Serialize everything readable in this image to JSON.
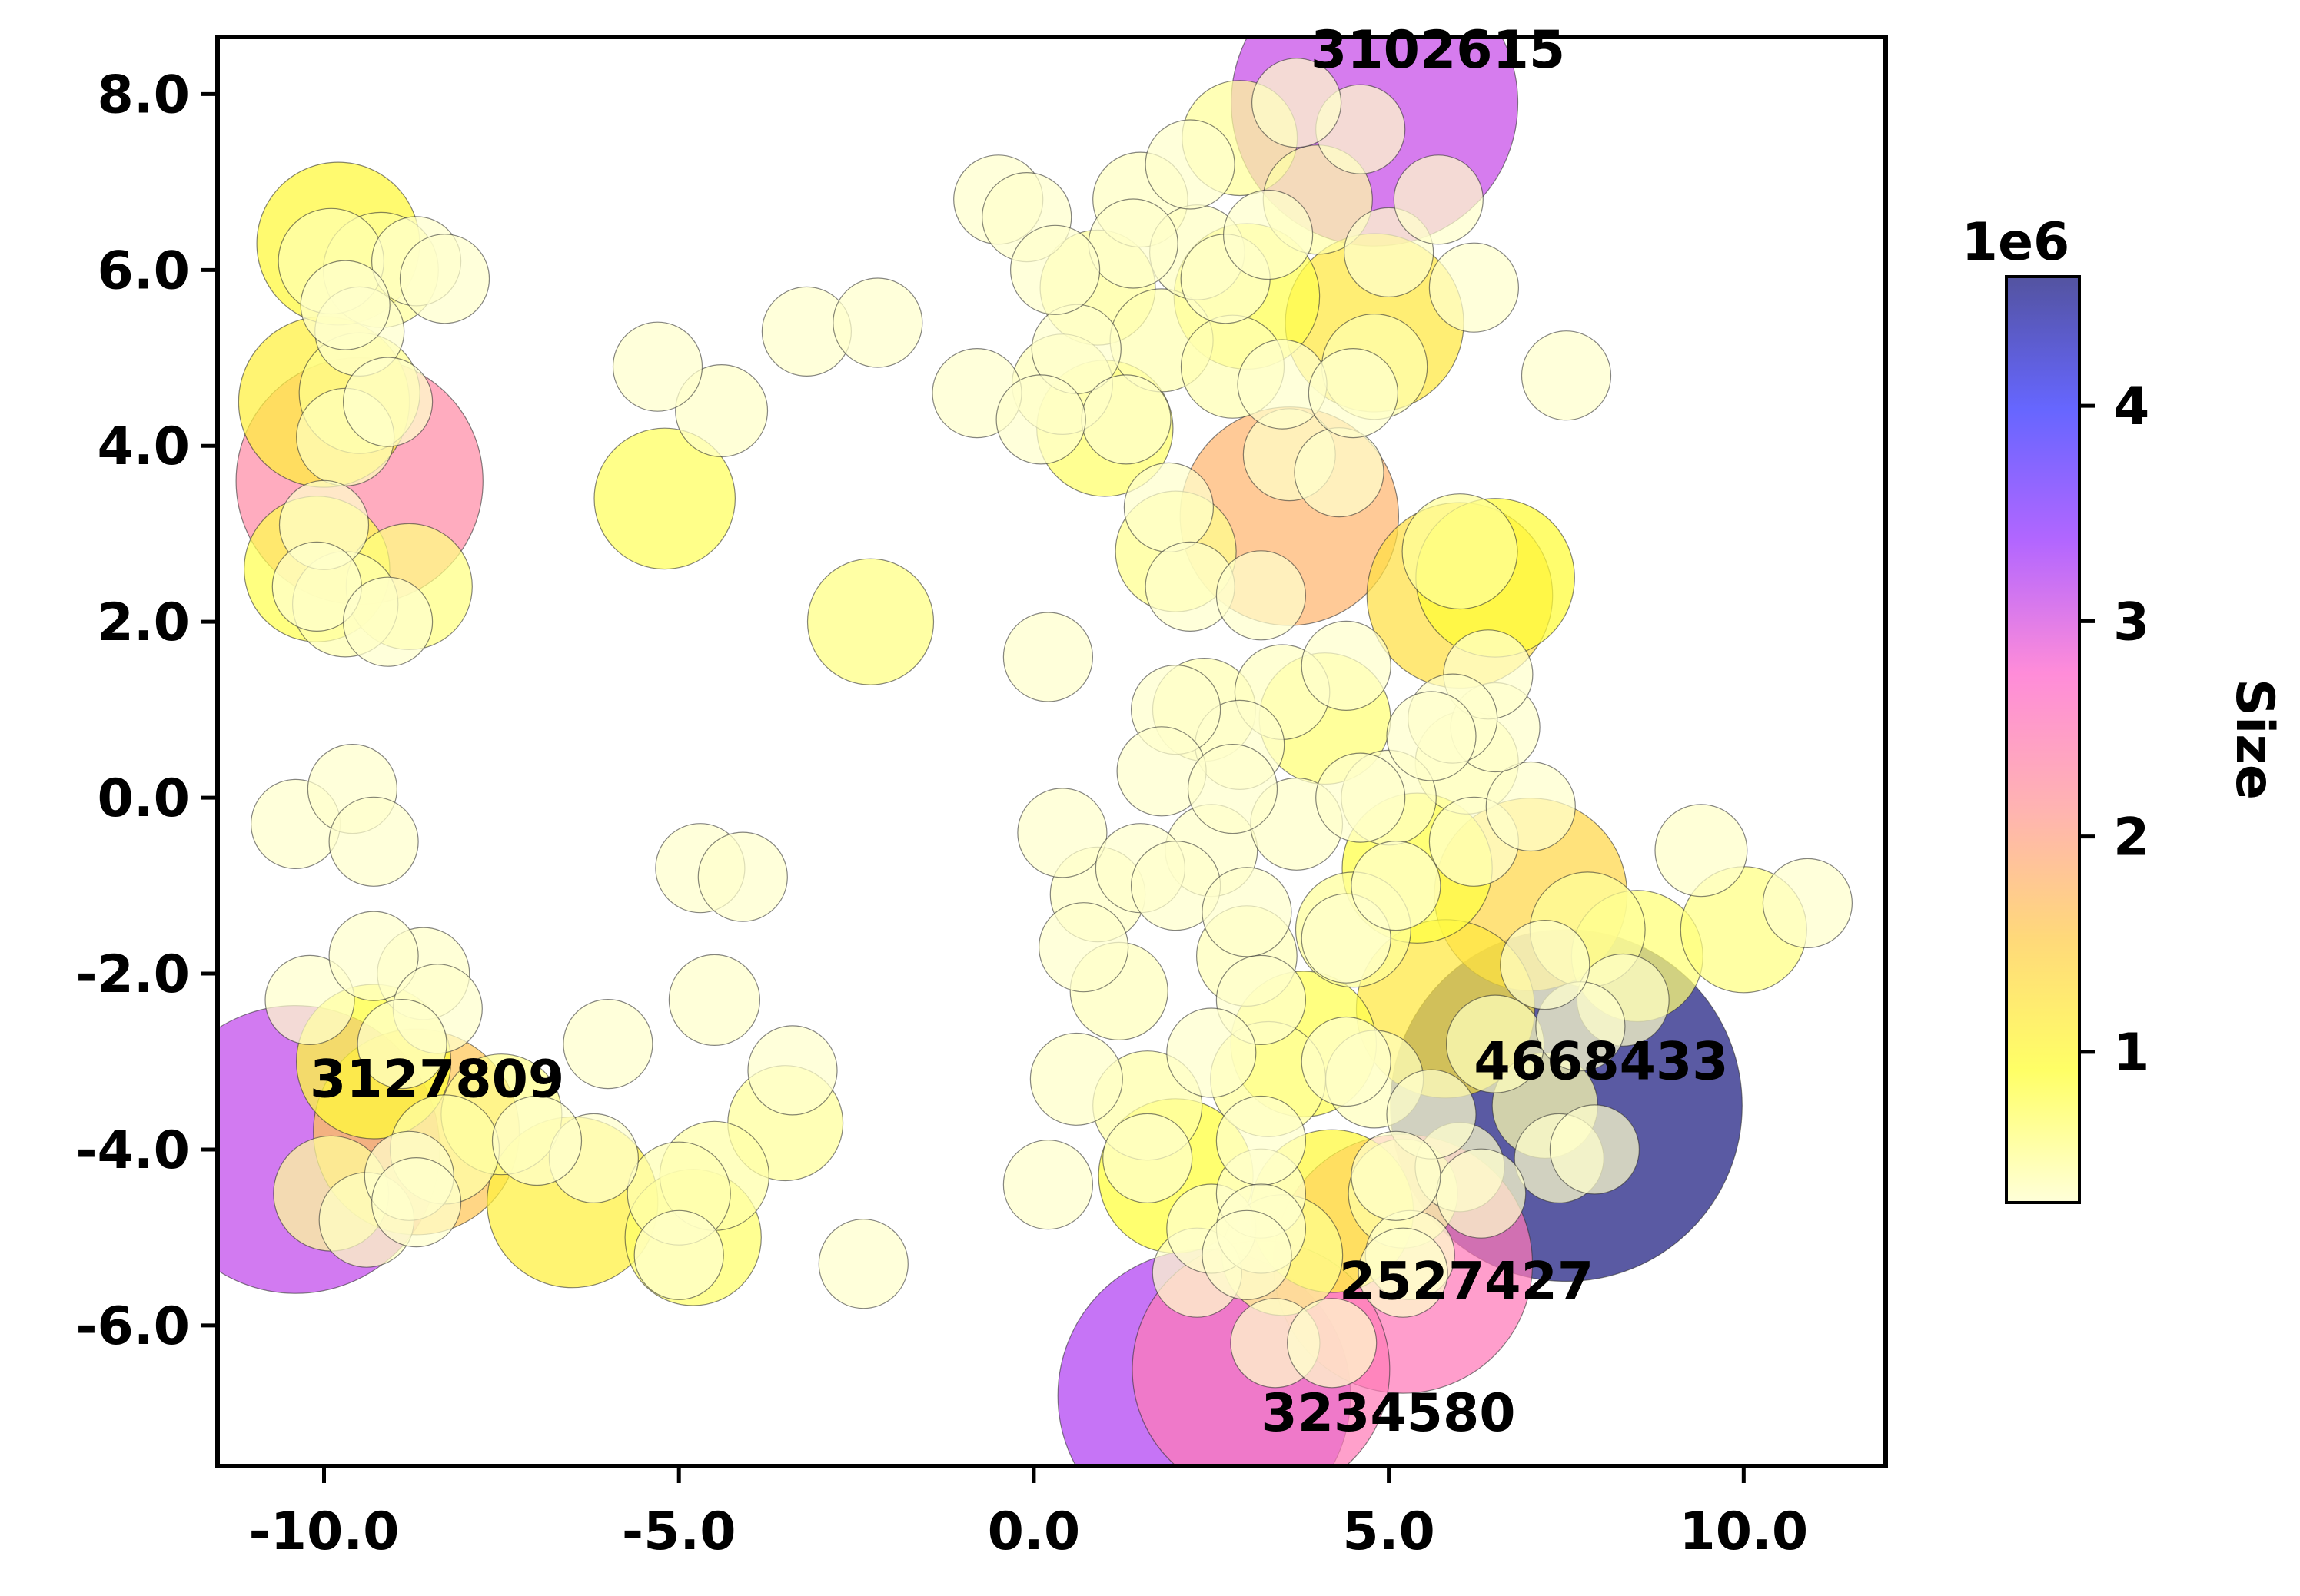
{
  "chart_data": {
    "type": "scatter",
    "title": "",
    "xlabel": "",
    "ylabel": "",
    "xlim": [
      -11.5,
      12.0
    ],
    "ylim": [
      -7.6,
      8.65
    ],
    "xticks": [
      -10.0,
      -5.0,
      0.0,
      5.0,
      10.0
    ],
    "xtick_labels": [
      "-10.0",
      "-5.0",
      "0.0",
      "5.0",
      "10.0"
    ],
    "yticks": [
      -6.0,
      -4.0,
      -2.0,
      0.0,
      2.0,
      4.0,
      6.0,
      8.0
    ],
    "ytick_labels": [
      "-6.0",
      "-4.0",
      "-2.0",
      "0.0",
      "2.0",
      "4.0",
      "6.0",
      "8.0"
    ],
    "grid": false,
    "colormap": "gnuplot2_r",
    "colormap_stops": [
      "#ffffcc",
      "#ffff33",
      "#ffcc4d",
      "#ff9999",
      "#ff66cc",
      "#9933ff",
      "#3333ff",
      "#1a1a80"
    ],
    "size_range": [
      300000,
      4600000
    ],
    "colorbar": {
      "label": "Size",
      "multiplier": "1e6",
      "ticks": [
        1,
        2,
        3,
        4
      ],
      "tick_labels": [
        "1",
        "2",
        "3",
        "4"
      ]
    },
    "annotations": [
      {
        "text": "3102615",
        "x": 3.9,
        "y": 8.3
      },
      {
        "text": "3127809",
        "x": -10.2,
        "y": -3.4
      },
      {
        "text": "4668433",
        "x": 6.2,
        "y": -3.2
      },
      {
        "text": "2527427",
        "x": 4.3,
        "y": -5.7
      },
      {
        "text": "3234580",
        "x": 3.2,
        "y": -7.2
      }
    ],
    "points": [
      {
        "x": 4.8,
        "y": 7.9,
        "size": 3100000
      },
      {
        "x": -10.4,
        "y": -4.0,
        "size": 3130000
      },
      {
        "x": 7.5,
        "y": -3.5,
        "size": 4670000
      },
      {
        "x": 5.2,
        "y": -5.3,
        "size": 2530000
      },
      {
        "x": 2.4,
        "y": -6.8,
        "size": 3230000
      },
      {
        "x": 3.2,
        "y": -6.5,
        "size": 2500000
      },
      {
        "x": -9.5,
        "y": 3.6,
        "size": 2300000
      },
      {
        "x": 3.6,
        "y": 3.2,
        "size": 1800000
      },
      {
        "x": 7.0,
        "y": -1.1,
        "size": 1400000
      },
      {
        "x": 6.0,
        "y": 2.3,
        "size": 1300000
      },
      {
        "x": -8.7,
        "y": -3.8,
        "size": 1600000
      },
      {
        "x": -6.5,
        "y": -4.6,
        "size": 1100000
      },
      {
        "x": 4.8,
        "y": 5.4,
        "size": 1200000
      },
      {
        "x": -9.8,
        "y": 6.3,
        "size": 1000000
      },
      {
        "x": -10.0,
        "y": 4.5,
        "size": 1100000
      },
      {
        "x": 5.8,
        "y": -2.4,
        "size": 1200000
      },
      {
        "x": 4.2,
        "y": -4.7,
        "size": 1000000
      },
      {
        "x": 6.5,
        "y": 2.5,
        "size": 950000
      },
      {
        "x": -10.1,
        "y": 2.6,
        "size": 800000
      },
      {
        "x": -9.3,
        "y": -3.0,
        "size": 900000
      },
      {
        "x": 2.0,
        "y": -4.3,
        "size": 900000
      },
      {
        "x": 3.8,
        "y": -2.8,
        "size": 800000
      },
      {
        "x": -5.2,
        "y": 3.4,
        "size": 750000
      },
      {
        "x": -2.3,
        "y": 2.0,
        "size": 600000
      },
      {
        "x": 5.4,
        "y": -0.8,
        "size": 850000
      },
      {
        "x": 3.0,
        "y": 5.7,
        "size": 800000
      },
      {
        "x": 1.0,
        "y": 4.2,
        "size": 700000
      },
      {
        "x": -4.8,
        "y": -5.0,
        "size": 700000
      },
      {
        "x": 8.5,
        "y": -1.8,
        "size": 650000
      },
      {
        "x": 10.0,
        "y": -1.5,
        "size": 600000
      },
      {
        "x": 4.1,
        "y": 0.9,
        "size": 650000
      },
      {
        "x": 2.0,
        "y": 2.8,
        "size": 550000
      },
      {
        "x": -8.8,
        "y": 2.4,
        "size": 600000
      },
      {
        "x": -9.5,
        "y": 4.6,
        "size": 550000
      },
      {
        "x": -9.2,
        "y": 6.0,
        "size": 500000
      },
      {
        "x": -7.5,
        "y": -3.6,
        "size": 550000
      },
      {
        "x": -3.5,
        "y": -3.7,
        "size": 500000
      },
      {
        "x": 6.0,
        "y": 2.8,
        "size": 500000
      },
      {
        "x": 7.8,
        "y": -1.5,
        "size": 500000
      },
      {
        "x": 3.3,
        "y": -3.2,
        "size": 500000
      },
      {
        "x": 4.5,
        "y": -1.5,
        "size": 500000
      },
      {
        "x": 3.5,
        "y": -5.2,
        "size": 550000
      },
      {
        "x": 2.9,
        "y": 7.5,
        "size": 500000
      },
      {
        "x": 0.9,
        "y": 5.8,
        "size": 500000
      },
      {
        "x": -9.9,
        "y": -4.5,
        "size": 500000
      },
      {
        "x": -8.3,
        "y": -4.0,
        "size": 450000
      },
      {
        "x": -4.5,
        "y": -4.3,
        "size": 450000
      },
      {
        "x": 1.6,
        "y": -3.5,
        "size": 450000
      },
      {
        "x": 5.2,
        "y": -4.5,
        "size": 450000
      },
      {
        "x": 2.4,
        "y": 1.0,
        "size": 400000
      },
      {
        "x": 6.1,
        "y": 0.4,
        "size": 400000
      },
      {
        "x": 4.0,
        "y": 6.8,
        "size": 450000
      },
      {
        "x": 1.8,
        "y": 5.2,
        "size": 400000
      },
      {
        "x": -9.7,
        "y": 2.2,
        "size": 420000
      },
      {
        "x": -9.9,
        "y": 6.1,
        "size": 420000
      },
      {
        "x": -5.0,
        "y": -4.5,
        "size": 400000
      },
      {
        "x": 4.8,
        "y": 4.9,
        "size": 420000
      },
      {
        "x": 2.8,
        "y": 4.9,
        "size": 400000
      },
      {
        "x": 0.4,
        "y": 4.7,
        "size": 380000
      },
      {
        "x": 7.2,
        "y": -3.5,
        "size": 420000
      },
      {
        "x": 3.0,
        "y": -1.8,
        "size": 380000
      },
      {
        "x": 1.2,
        "y": -2.2,
        "size": 360000
      },
      {
        "x": 4.8,
        "y": -3.2,
        "size": 360000
      },
      {
        "x": 6.5,
        "y": -2.8,
        "size": 360000
      },
      {
        "x": -9.7,
        "y": 4.1,
        "size": 360000
      },
      {
        "x": -9.4,
        "y": -4.8,
        "size": 340000
      },
      {
        "x": 0.9,
        "y": -1.1,
        "size": 340000
      },
      {
        "x": 5.0,
        "y": 0.0,
        "size": 340000
      },
      {
        "x": 3.5,
        "y": 1.2,
        "size": 340000
      },
      {
        "x": 1.5,
        "y": 6.8,
        "size": 340000
      },
      {
        "x": 2.3,
        "y": 6.2,
        "size": 340000
      },
      {
        "x": 3.6,
        "y": 3.9,
        "size": 320000
      },
      {
        "x": 2.5,
        "y": -0.6,
        "size": 320000
      },
      {
        "x": 3.7,
        "y": -0.3,
        "size": 320000
      },
      {
        "x": 8.3,
        "y": -2.3,
        "size": 320000
      },
      {
        "x": 9.4,
        "y": -0.6,
        "size": 320000
      },
      {
        "x": 10.9,
        "y": -1.2,
        "size": 300000
      },
      {
        "x": -8.6,
        "y": -2.0,
        "size": 320000
      },
      {
        "x": -4.5,
        "y": -2.3,
        "size": 310000
      },
      {
        "x": -6.0,
        "y": -2.8,
        "size": 300000
      },
      {
        "x": -3.4,
        "y": -3.1,
        "size": 300000
      },
      {
        "x": -4.7,
        "y": -0.8,
        "size": 300000
      },
      {
        "x": -4.1,
        "y": -0.9,
        "size": 300000
      },
      {
        "x": -10.4,
        "y": -0.3,
        "size": 300000
      },
      {
        "x": -9.6,
        "y": 0.1,
        "size": 300000
      },
      {
        "x": -9.3,
        "y": -0.5,
        "size": 300000
      },
      {
        "x": -5.3,
        "y": 4.9,
        "size": 300000
      },
      {
        "x": -4.4,
        "y": 4.4,
        "size": 320000
      },
      {
        "x": -3.2,
        "y": 5.3,
        "size": 300000
      },
      {
        "x": -2.2,
        "y": 5.4,
        "size": 300000
      },
      {
        "x": -0.8,
        "y": 4.6,
        "size": 300000
      },
      {
        "x": 0.2,
        "y": 1.6,
        "size": 300000
      },
      {
        "x": -2.4,
        "y": -5.3,
        "size": 300000
      },
      {
        "x": 0.2,
        "y": -4.4,
        "size": 300000
      },
      {
        "x": 0.6,
        "y": -3.2,
        "size": 320000
      },
      {
        "x": 0.4,
        "y": -0.4,
        "size": 300000
      },
      {
        "x": 0.7,
        "y": -1.7,
        "size": 300000
      },
      {
        "x": 6.2,
        "y": 5.8,
        "size": 300000
      },
      {
        "x": 7.5,
        "y": 4.8,
        "size": 300000
      },
      {
        "x": -0.5,
        "y": 6.8,
        "size": 300000
      },
      {
        "x": -0.1,
        "y": 6.6,
        "size": 300000
      },
      {
        "x": 0.6,
        "y": 5.1,
        "size": 300000
      },
      {
        "x": 1.3,
        "y": 4.3,
        "size": 300000
      },
      {
        "x": 1.9,
        "y": 3.3,
        "size": 300000
      },
      {
        "x": 2.2,
        "y": 2.4,
        "size": 300000
      },
      {
        "x": 3.2,
        "y": 2.3,
        "size": 300000
      },
      {
        "x": 3.5,
        "y": 4.7,
        "size": 300000
      },
      {
        "x": 4.3,
        "y": 3.7,
        "size": 300000
      },
      {
        "x": 4.5,
        "y": 4.6,
        "size": 300000
      },
      {
        "x": 5.0,
        "y": 6.2,
        "size": 300000
      },
      {
        "x": 5.7,
        "y": 6.8,
        "size": 300000
      },
      {
        "x": 4.6,
        "y": 7.6,
        "size": 300000
      },
      {
        "x": 3.7,
        "y": 7.9,
        "size": 300000
      },
      {
        "x": 2.2,
        "y": 7.2,
        "size": 300000
      },
      {
        "x": 1.4,
        "y": 6.3,
        "size": 300000
      },
      {
        "x": 0.3,
        "y": 6.0,
        "size": 300000
      },
      {
        "x": 0.1,
        "y": 4.3,
        "size": 300000
      },
      {
        "x": 2.7,
        "y": 5.9,
        "size": 300000
      },
      {
        "x": 3.3,
        "y": 6.4,
        "size": 300000
      },
      {
        "x": -10.0,
        "y": 3.1,
        "size": 300000
      },
      {
        "x": -10.1,
        "y": 2.4,
        "size": 300000
      },
      {
        "x": -9.1,
        "y": 2.0,
        "size": 300000
      },
      {
        "x": -9.5,
        "y": 5.3,
        "size": 300000
      },
      {
        "x": -8.7,
        "y": 6.1,
        "size": 300000
      },
      {
        "x": -8.3,
        "y": 5.9,
        "size": 300000
      },
      {
        "x": -9.7,
        "y": 5.6,
        "size": 300000
      },
      {
        "x": -9.1,
        "y": 4.5,
        "size": 300000
      },
      {
        "x": -10.2,
        "y": -2.3,
        "size": 300000
      },
      {
        "x": -9.3,
        "y": -1.8,
        "size": 300000
      },
      {
        "x": -8.4,
        "y": -2.4,
        "size": 300000
      },
      {
        "x": -8.9,
        "y": -2.8,
        "size": 300000
      },
      {
        "x": -8.8,
        "y": -4.3,
        "size": 300000
      },
      {
        "x": -8.7,
        "y": -4.6,
        "size": 300000
      },
      {
        "x": -6.2,
        "y": -4.1,
        "size": 300000
      },
      {
        "x": -7.0,
        "y": -3.9,
        "size": 300000
      },
      {
        "x": -5.0,
        "y": -5.2,
        "size": 300000
      },
      {
        "x": 2.3,
        "y": -5.4,
        "size": 300000
      },
      {
        "x": 2.5,
        "y": -4.9,
        "size": 300000
      },
      {
        "x": 3.2,
        "y": -4.5,
        "size": 300000
      },
      {
        "x": 3.4,
        "y": -6.2,
        "size": 300000
      },
      {
        "x": 4.2,
        "y": -6.2,
        "size": 300000
      },
      {
        "x": 5.3,
        "y": -5.2,
        "size": 300000
      },
      {
        "x": 6.0,
        "y": -4.2,
        "size": 300000
      },
      {
        "x": 7.4,
        "y": -4.1,
        "size": 300000
      },
      {
        "x": 7.9,
        "y": -4.0,
        "size": 300000
      },
      {
        "x": 7.7,
        "y": -2.6,
        "size": 300000
      },
      {
        "x": 7.2,
        "y": -1.9,
        "size": 300000
      },
      {
        "x": 6.2,
        "y": -0.5,
        "size": 300000
      },
      {
        "x": 7.0,
        "y": -0.1,
        "size": 300000
      },
      {
        "x": 6.5,
        "y": 0.8,
        "size": 300000
      },
      {
        "x": 6.4,
        "y": 1.4,
        "size": 300000
      },
      {
        "x": 5.9,
        "y": 0.9,
        "size": 300000
      },
      {
        "x": 5.6,
        "y": 0.7,
        "size": 300000
      },
      {
        "x": 4.4,
        "y": 1.5,
        "size": 300000
      },
      {
        "x": 2.9,
        "y": 0.6,
        "size": 300000
      },
      {
        "x": 2.0,
        "y": 1.0,
        "size": 300000
      },
      {
        "x": 1.8,
        "y": 0.3,
        "size": 300000
      },
      {
        "x": 2.8,
        "y": 0.1,
        "size": 300000
      },
      {
        "x": 4.6,
        "y": 0.0,
        "size": 300000
      },
      {
        "x": 1.5,
        "y": -0.8,
        "size": 300000
      },
      {
        "x": 2.0,
        "y": -1.0,
        "size": 300000
      },
      {
        "x": 3.0,
        "y": -1.3,
        "size": 300000
      },
      {
        "x": 4.4,
        "y": -1.6,
        "size": 300000
      },
      {
        "x": 5.1,
        "y": -1.0,
        "size": 300000
      },
      {
        "x": 3.2,
        "y": -2.3,
        "size": 300000
      },
      {
        "x": 2.5,
        "y": -2.9,
        "size": 300000
      },
      {
        "x": 4.4,
        "y": -3.0,
        "size": 300000
      },
      {
        "x": 5.6,
        "y": -3.6,
        "size": 300000
      },
      {
        "x": 6.3,
        "y": -4.5,
        "size": 300000
      },
      {
        "x": 5.1,
        "y": -4.3,
        "size": 300000
      },
      {
        "x": 3.2,
        "y": -3.9,
        "size": 300000
      },
      {
        "x": 1.6,
        "y": -4.1,
        "size": 300000
      },
      {
        "x": 3.2,
        "y": -4.9,
        "size": 300000
      },
      {
        "x": 3.0,
        "y": -5.2,
        "size": 300000
      },
      {
        "x": 5.2,
        "y": -5.4,
        "size": 300000
      }
    ]
  }
}
